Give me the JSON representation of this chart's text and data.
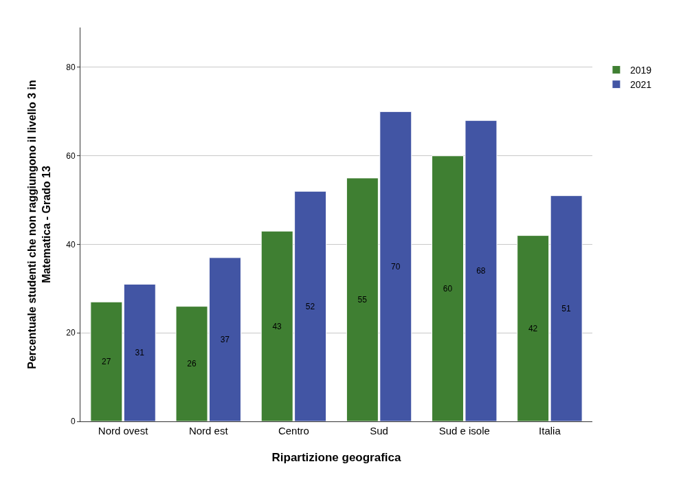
{
  "chart_data": {
    "type": "bar",
    "xlabel": "Ripartizione geografica",
    "ylabel": "Percentuale studenti che non raggiungono il livello 3 in Matematica - Grado 13",
    "categories": [
      "Nord ovest",
      "Nord est",
      "Centro",
      "Sud",
      "Sud e isole",
      "Italia"
    ],
    "series": [
      {
        "name": "2019",
        "color": "#3f7f32",
        "values": [
          27,
          26,
          43,
          55,
          60,
          42
        ]
      },
      {
        "name": "2021",
        "color": "#4255a4",
        "values": [
          31,
          37,
          52,
          70,
          68,
          51
        ]
      }
    ],
    "ylim": [
      0,
      89
    ],
    "yticks": [
      0,
      20,
      40,
      60,
      80
    ],
    "grid": "y",
    "legend": "top right",
    "data_labels": true
  }
}
